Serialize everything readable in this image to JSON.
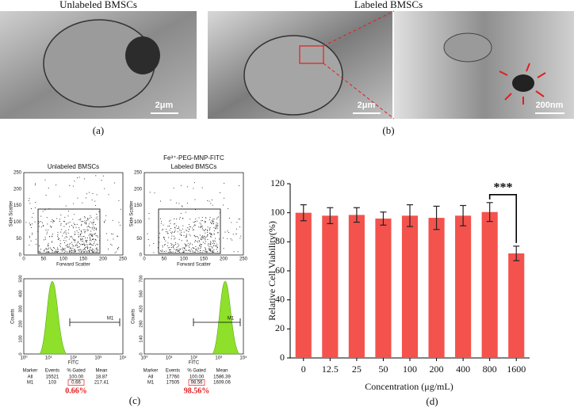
{
  "panel_a": {
    "title": "Unlabeled BMSCs",
    "scale_bar": "2μm",
    "label": "(a)"
  },
  "panel_b": {
    "title": "Labeled BMSCs",
    "scale_bar_cell": "2μm",
    "scale_bar_zoom": "200nm",
    "label": "(b)"
  },
  "panel_c": {
    "label": "(c)",
    "scatter_ticks": [
      "0",
      "50",
      "100",
      "150",
      "200",
      "250"
    ],
    "x_axis_scatter": "Forward Scatter",
    "y_axis_scatter": "Side Scatter",
    "x_axis_hist": "FITC",
    "y_axis_hist": "Counts",
    "hist_x_ticks": [
      "10⁰",
      "10¹",
      "10²",
      "10³",
      "10⁴"
    ],
    "gate": "M1",
    "table_header": [
      "Marker",
      "Events",
      "% Gated",
      "Mean"
    ],
    "samples": [
      {
        "title": [
          "Unlabeled BMSCs"
        ],
        "hist_y_ticks": [
          "0",
          "100",
          "200",
          "300",
          "400",
          "500"
        ],
        "rows": [
          [
            "All",
            "15521",
            "100.00",
            "18.87"
          ],
          [
            "M1",
            "103",
            "0.66",
            "217.41"
          ]
        ],
        "gated": "0.66%"
      },
      {
        "title": [
          "Fe³⁺-PEG-MNP-FITC",
          "Labeled BMSCs"
        ],
        "hist_y_ticks": [
          "0",
          "140",
          "280",
          "420",
          "560",
          "700"
        ],
        "rows": [
          [
            "All",
            "17760",
            "100.00",
            "1586.39"
          ],
          [
            "M1",
            "17505",
            "98.56",
            "1609.06"
          ]
        ],
        "gated": "98.56%"
      }
    ]
  },
  "chart_data": {
    "type": "bar",
    "label": "(d)",
    "x_label": "Concentration (μg/mL)",
    "y_label": "Relative Cell Viability(%)",
    "categories": [
      "0",
      "12.5",
      "25",
      "50",
      "100",
      "200",
      "400",
      "800",
      "1600"
    ],
    "values": [
      100,
      98,
      98.5,
      96,
      98,
      96.5,
      98,
      100.5,
      72
    ],
    "errors": [
      5.5,
      5.5,
      5,
      4.5,
      7.5,
      8,
      7,
      6.5,
      5
    ],
    "color": "#f4524d",
    "ylim": [
      0,
      120
    ],
    "yticks": [
      0,
      20,
      40,
      60,
      80,
      100,
      120
    ],
    "annotation": "***"
  }
}
